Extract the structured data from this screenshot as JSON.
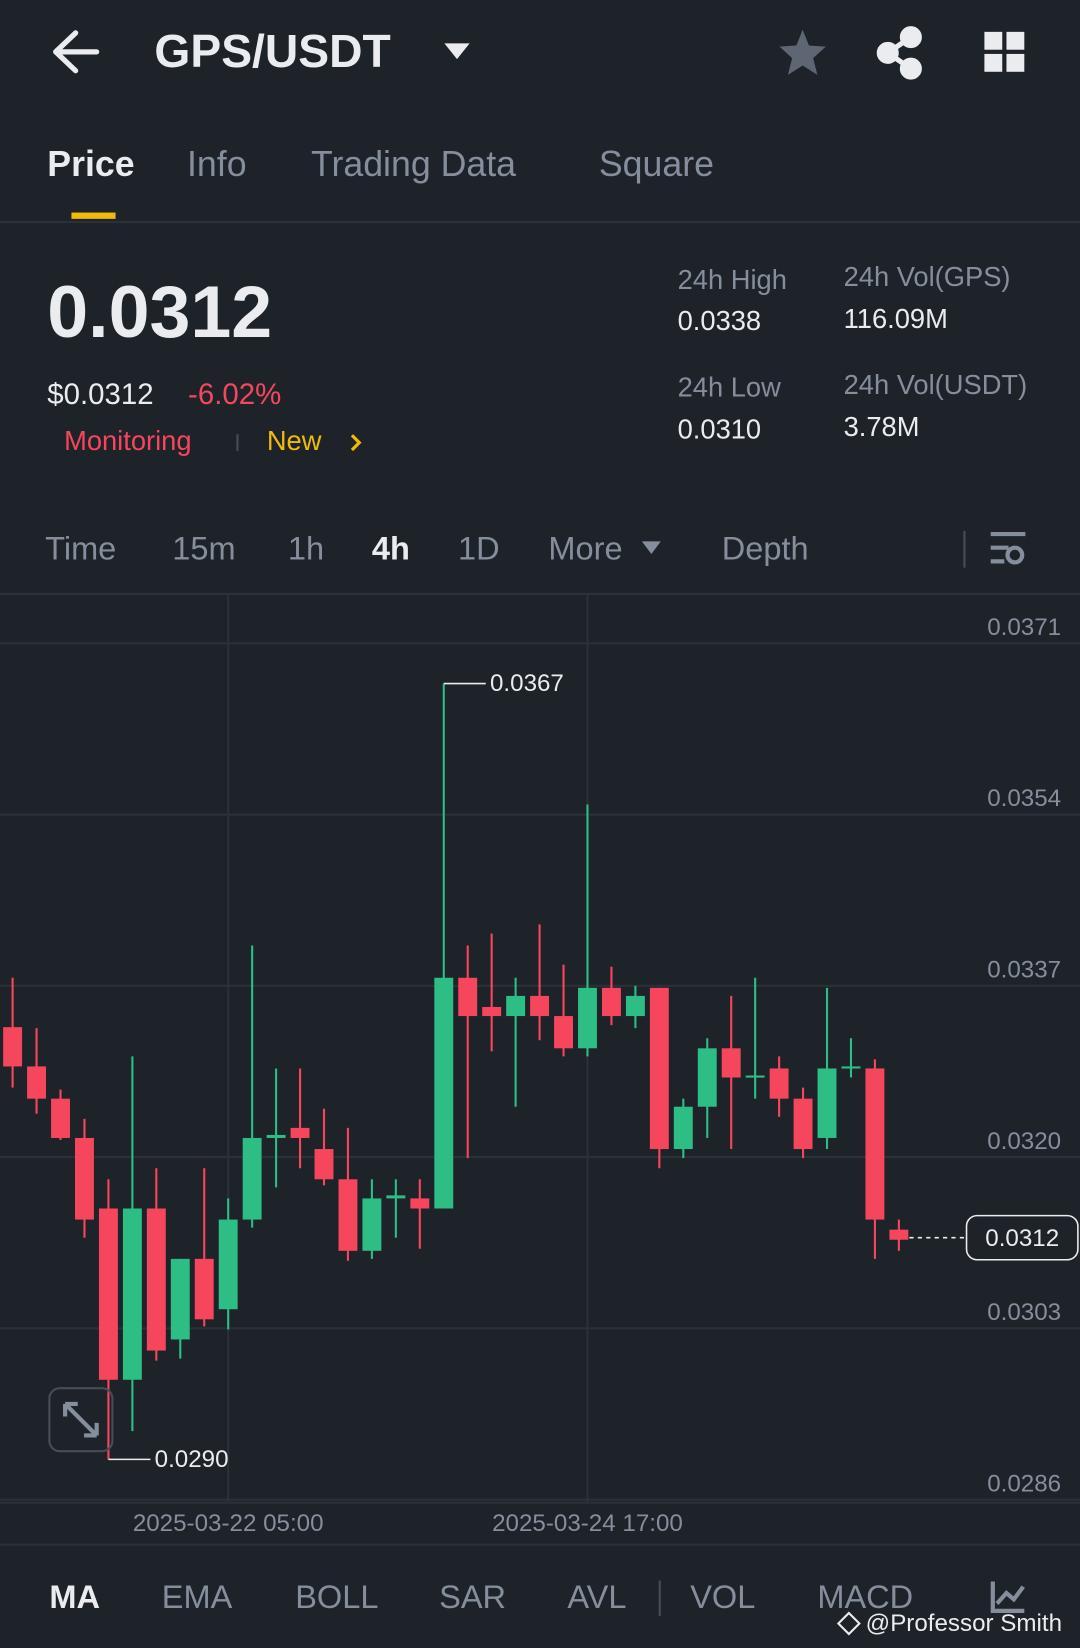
{
  "header": {
    "title": "GPS/USDT"
  },
  "tabs": [
    "Price",
    "Info",
    "Trading Data",
    "Square"
  ],
  "price": {
    "last": "0.0312",
    "usd": "$0.0312",
    "change": "-6.02%",
    "tags": [
      "Monitoring",
      "New"
    ]
  },
  "stats": [
    {
      "label": "24h High",
      "value": "0.0338"
    },
    {
      "label": "24h Vol(GPS)",
      "value": "116.09M"
    },
    {
      "label": "24h Low",
      "value": "0.0310"
    },
    {
      "label": "24h Vol(USDT)",
      "value": "3.78M"
    }
  ],
  "intervals": [
    "Time",
    "15m",
    "1h",
    "4h",
    "1D",
    "More",
    "Depth"
  ],
  "indicators": [
    "MA",
    "EMA",
    "BOLL",
    "SAR",
    "AVL",
    "VOL",
    "MACD"
  ],
  "watermark": "@Professor Smith",
  "chart_data": {
    "type": "candlestick",
    "categories": [
      null,
      null,
      null,
      null,
      null,
      null,
      null,
      null,
      null,
      "2025-03-22 05:00",
      null,
      null,
      null,
      null,
      null,
      null,
      null,
      null,
      null,
      null,
      null,
      null,
      null,
      null,
      "2025-03-24 17:00",
      null,
      null,
      null,
      null,
      null,
      null,
      null,
      null,
      null,
      null,
      null,
      null,
      null
    ],
    "open": [
      0.03329,
      0.0329,
      0.03258,
      0.03219,
      0.03149,
      0.02979,
      0.03149,
      0.03019,
      0.03099,
      0.03049,
      0.03138,
      0.03219,
      0.03229,
      0.03208,
      0.03178,
      0.03107,
      0.03159,
      0.03159,
      0.03149,
      0.03378,
      0.03349,
      0.0334,
      0.0336,
      0.0334,
      0.03308,
      0.03368,
      0.0334,
      0.03368,
      0.03208,
      0.0325,
      0.03308,
      0.03279,
      0.03288,
      0.03258,
      0.03219,
      0.03288,
      0.03288,
      0.03128
    ],
    "high": [
      0.03378,
      0.03328,
      0.03267,
      0.03238,
      0.03178,
      0.033,
      0.03189,
      0.03099,
      0.03189,
      0.03159,
      0.0341,
      0.03288,
      0.03288,
      0.03248,
      0.03229,
      0.03178,
      0.03178,
      0.03178,
      0.0367,
      0.0341,
      0.03422,
      0.03378,
      0.03431,
      0.03391,
      0.0355,
      0.03389,
      0.0337,
      0.03368,
      0.03258,
      0.03318,
      0.0336,
      0.03378,
      0.033,
      0.03269,
      0.03368,
      0.03318,
      0.03297,
      0.03138
    ],
    "low": [
      0.03269,
      0.03243,
      0.03217,
      0.0312,
      0.029,
      0.02928,
      0.02998,
      0.03,
      0.03032,
      0.03029,
      0.0313,
      0.0317,
      0.03189,
      0.03172,
      0.03097,
      0.03099,
      0.0312,
      0.03109,
      0.03149,
      0.03199,
      0.03305,
      0.0325,
      0.03316,
      0.033,
      0.033,
      0.03331,
      0.03328,
      0.03189,
      0.03199,
      0.03219,
      0.03208,
      0.03258,
      0.0324,
      0.03199,
      0.03208,
      0.03279,
      0.03099,
      0.03107
    ],
    "close": [
      0.0329,
      0.03258,
      0.03219,
      0.03138,
      0.02979,
      0.03149,
      0.03008,
      0.03099,
      0.03039,
      0.03138,
      0.03219,
      0.03222,
      0.03219,
      0.03178,
      0.03107,
      0.03159,
      0.03162,
      0.03149,
      0.03378,
      0.0334,
      0.0334,
      0.0336,
      0.0334,
      0.03308,
      0.03368,
      0.0334,
      0.0336,
      0.03208,
      0.0325,
      0.03308,
      0.03279,
      0.03281,
      0.03258,
      0.03208,
      0.03288,
      0.0329,
      0.03138,
      0.03118
    ],
    "up_color": "#2ebd85",
    "down_color": "#f6465d",
    "ylim": [
      0.02857,
      0.03759
    ],
    "yticks": [
      0.0371,
      0.0354,
      0.0337,
      {
        "value": 0.032,
        "label": "0.0320"
      },
      0.0303,
      0.0286
    ],
    "grid": true,
    "high_marker": 0.0367,
    "low_marker": {
      "value": 0.029,
      "label": "0.0290"
    },
    "last_price": 0.0312
  }
}
